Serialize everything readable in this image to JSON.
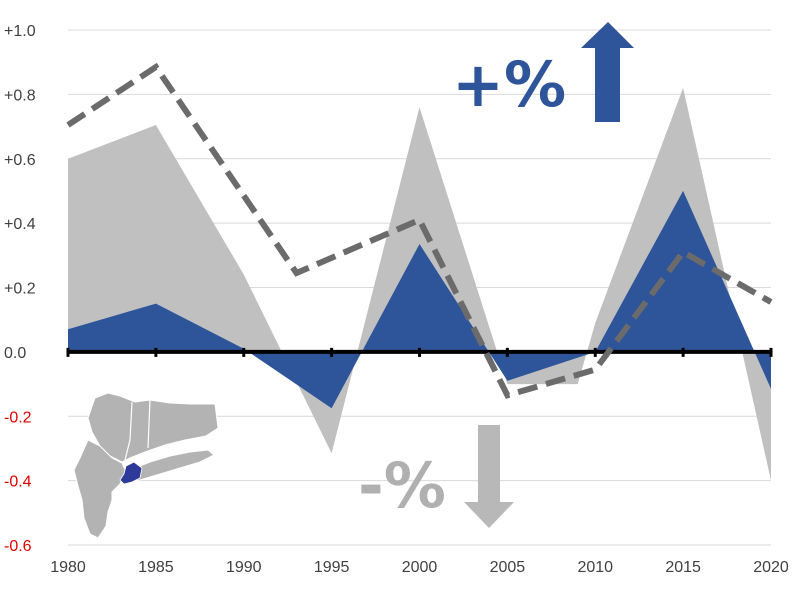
{
  "chart_data": {
    "type": "area",
    "x": [
      1980,
      1985,
      1990,
      1995,
      2000,
      2005,
      2010,
      2015,
      2020
    ],
    "xlim": [
      1980,
      2020
    ],
    "ylim": [
      -0.6,
      1.0
    ],
    "y_ticks": [
      1.0,
      0.8,
      0.6,
      0.4,
      0.2,
      0.0,
      -0.2,
      -0.4,
      -0.6
    ],
    "y_tick_labels": [
      "+1.0",
      "+0.8",
      "+0.6",
      "+0.4",
      "+0.2",
      "0.0",
      "-0.2",
      "-0.4",
      "-0.6"
    ],
    "x_tick_labels": [
      "1980",
      "1985",
      "1990",
      "1995",
      "2000",
      "2005",
      "2010",
      "2015",
      "2020"
    ],
    "grid": true,
    "series": [
      {
        "kind": "area",
        "color": "#c0c0c0",
        "points": [
          [
            1980,
            0.6
          ],
          [
            1985,
            0.705
          ],
          [
            1990,
            0.24
          ],
          [
            1995,
            -0.315
          ],
          [
            2000,
            0.76
          ],
          [
            2005,
            -0.1
          ],
          [
            2009,
            -0.1
          ],
          [
            2010,
            0.09
          ],
          [
            2015,
            0.82
          ],
          [
            2020,
            -0.4
          ]
        ]
      },
      {
        "kind": "area",
        "color": "#2e5499",
        "points": [
          [
            1980,
            0.07
          ],
          [
            1985,
            0.15
          ],
          [
            1990,
            0.01
          ],
          [
            1995,
            -0.175
          ],
          [
            2000,
            0.335
          ],
          [
            2005,
            -0.09
          ],
          [
            2010,
            0.0
          ],
          [
            2015,
            0.5
          ],
          [
            2020,
            -0.115
          ]
        ]
      },
      {
        "kind": "line",
        "style": "dashed",
        "color": "#6b6b6b",
        "points": [
          [
            1980,
            0.705
          ],
          [
            1985,
            0.885
          ],
          [
            1993,
            0.245
          ],
          [
            2000,
            0.41
          ],
          [
            2005,
            -0.135
          ],
          [
            2010,
            -0.055
          ],
          [
            2015,
            0.31
          ],
          [
            2020,
            0.155
          ]
        ]
      }
    ],
    "annotations": [
      {
        "text": "+%",
        "color": "#2e5499",
        "arrow": "up"
      },
      {
        "text": "-%",
        "color": "#b0b0b0",
        "arrow": "down"
      }
    ],
    "inset_map": {
      "description": "regional map",
      "base_color": "#b3b3b3",
      "highlight_color": "#2e3a99"
    },
    "colors": {
      "negative_tick": "#e00000",
      "positive_tick": "#404040",
      "zero_line": "#000000",
      "grid": "#d9d9d9"
    }
  }
}
